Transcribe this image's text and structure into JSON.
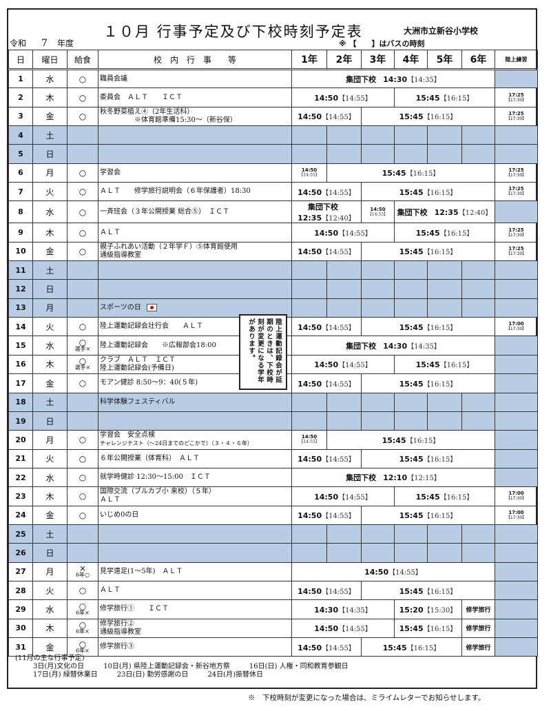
{
  "title": "１０月 行事予定及び下校時刻予定表",
  "school": "大洲市立新谷小学校",
  "era": {
    "label": "令和",
    "year": "7",
    "suffix": "年度"
  },
  "bus_note": "※ 【　　】はバスの時刻",
  "headers": {
    "day": "日",
    "dow": "曜日",
    "lunch": "給食",
    "events": "校　内　行　事　　等",
    "grades": [
      "1年",
      "2年",
      "3年",
      "4年",
      "5年",
      "6年"
    ],
    "track": "陸上練習"
  },
  "colors": {
    "holiday_fill": "#b8cce4",
    "border": "#333333"
  },
  "rows": [
    {
      "d": "1",
      "w": "水",
      "l": "○",
      "e": "職員会議",
      "seg": [
        {
          "n": 6,
          "label": "集団下校",
          "t": "14:30",
          "b": "【14:35】"
        }
      ],
      "tr": null
    },
    {
      "d": "2",
      "w": "木",
      "l": "○",
      "e": "委員会　ＡＬＴ　　ＩＣＴ",
      "seg": [
        {
          "n": 3,
          "t": "14:50",
          "b": "【14:55】"
        },
        {
          "n": 3,
          "t": "15:45",
          "b": "【16:15】"
        }
      ],
      "tr": {
        "t": "17:25",
        "b": "【17:30】"
      }
    },
    {
      "d": "3",
      "w": "金",
      "l": "○",
      "e": "秋冬野菜植え④（2年生活科）\n　　　　　※体育館準備15:30～（新谷保）",
      "seg": [
        {
          "n": 2,
          "t": "14:50",
          "b": "【14:55】"
        },
        {
          "n": 4,
          "t": "15:45",
          "b": "【16:15】"
        }
      ],
      "tr": {
        "t": "17:25",
        "b": "【17:30】"
      }
    },
    {
      "d": "4",
      "w": "土",
      "h": true
    },
    {
      "d": "5",
      "w": "日",
      "h": true
    },
    {
      "d": "6",
      "w": "月",
      "l": "○",
      "e": "学習会",
      "seg": [
        {
          "n": 1,
          "t": "14:50",
          "b": "【14:55】",
          "small": true
        },
        {
          "n": 5,
          "t": "15:45",
          "b": "【16:15】"
        }
      ],
      "tr": {
        "t": "17:25",
        "b": "【17:30】"
      }
    },
    {
      "d": "7",
      "w": "火",
      "l": "○",
      "e": "ＡＬＴ　　修学旅行説明会（６年保護者）18:30",
      "seg": [
        {
          "n": 2,
          "t": "14:50",
          "b": "【14:55】"
        },
        {
          "n": 4,
          "t": "15:45",
          "b": "【16:15】"
        }
      ],
      "tr": {
        "t": "17:25",
        "b": "【17:30】"
      }
    },
    {
      "d": "8",
      "w": "水",
      "l": "○",
      "e": "一斉班会（３年公開授業 総合⑤）　ＩＣＴ",
      "seg": [
        {
          "n": 2,
          "label": "集団下校",
          "t": "12:35",
          "b": "【12:40】",
          "stack": true
        },
        {
          "n": 1,
          "t": "14:50",
          "b": "【14:55】",
          "small": true
        },
        {
          "n": 3,
          "label": "集団下校",
          "t": "12:35",
          "b": "【12:40】"
        }
      ],
      "tr": null
    },
    {
      "d": "9",
      "w": "木",
      "l": "○",
      "e": "ＡＬＴ",
      "seg": [
        {
          "n": 3,
          "t": "14:50",
          "b": "【14:55】"
        },
        {
          "n": 3,
          "t": "15:45",
          "b": "【16:15】"
        }
      ],
      "tr": {
        "t": "17:25",
        "b": "【17:30】"
      }
    },
    {
      "d": "10",
      "w": "金",
      "l": "○",
      "e": "親子ふれあい活動（２年学Ｆ）⑤体育館使用\n通級指導教室",
      "seg": [
        {
          "n": 2,
          "t": "14:50",
          "b": "【14:55】"
        },
        {
          "n": 4,
          "t": "15:45",
          "b": "【16:15】"
        }
      ],
      "tr": {
        "t": "17:25",
        "b": "【17:30】"
      }
    },
    {
      "d": "11",
      "w": "土",
      "h": true
    },
    {
      "d": "12",
      "w": "日",
      "h": true
    },
    {
      "d": "13",
      "w": "月",
      "h": true,
      "e": "スポーツの日",
      "flag": true
    },
    {
      "d": "14",
      "w": "火",
      "l": "○",
      "e": "陸上運動記録会壮行会　　ＡＬＴ",
      "seg": [
        {
          "n": 2,
          "t": "14:50",
          "b": "【14:55】"
        },
        {
          "n": 4,
          "t": "15:45",
          "b": "【16:15】"
        }
      ],
      "tr": {
        "t": "17:00",
        "b": "【17:30】"
      }
    },
    {
      "d": "15",
      "w": "水",
      "l": "○",
      "l2": "選手×",
      "e": "陸上運動記録会　　※広報部会18:00",
      "seg": [
        {
          "n": 6,
          "label": "集団下校",
          "t": "14:30",
          "b": "【14:35】"
        }
      ],
      "tr": null
    },
    {
      "d": "16",
      "w": "木",
      "l": "○",
      "l2": "選手×",
      "e": "クラブ　ＡＬＴ　ＩＣＴ\n陸上運動記録会(予備日)",
      "seg": [
        {
          "n": 3,
          "t": "14:50",
          "b": "【14:55】"
        },
        {
          "n": 3,
          "t": "15:45",
          "b": "【16:15】"
        }
      ],
      "tr": null
    },
    {
      "d": "17",
      "w": "金",
      "l": "○",
      "e": "モアン健診 8:50～9：40(５年)",
      "seg": [
        {
          "n": 2,
          "t": "14:50",
          "b": "【14:55】"
        },
        {
          "n": 4,
          "t": "15:45",
          "b": "【16:15】"
        }
      ],
      "tr": null
    },
    {
      "d": "18",
      "w": "土",
      "h": true,
      "e": "科学体験フェスティバル"
    },
    {
      "d": "19",
      "w": "日",
      "h": true
    },
    {
      "d": "20",
      "w": "月",
      "l": "○",
      "e": "学習会　安全点検",
      "e2": "チャレンジテスト（～24日までのどこかで）（３・４・６年）",
      "seg": [
        {
          "n": 1,
          "t": "14:50",
          "b": "【14:55】",
          "small": true
        },
        {
          "n": 5,
          "t": "15:45",
          "b": "【16:15】"
        }
      ],
      "tr": null
    },
    {
      "d": "21",
      "w": "火",
      "l": "○",
      "e": "６年公開授業（体育科）　ＡＬＴ",
      "seg": [
        {
          "n": 2,
          "t": "14:50",
          "b": "【14:55】"
        },
        {
          "n": 4,
          "t": "15:45",
          "b": "【16:15】"
        }
      ],
      "tr": null
    },
    {
      "d": "22",
      "w": "水",
      "l": "○",
      "e": "就学時健診 12:30～15:00　ＩＣＴ",
      "seg": [
        {
          "n": 6,
          "label": "集団下校",
          "t": "12:10",
          "b": "【12:15】"
        }
      ],
      "tr": null
    },
    {
      "d": "23",
      "w": "木",
      "l": "○",
      "e": "国際交流（ブルカブ小 来校）（５年）\nＡＬＴ",
      "seg": [
        {
          "n": 3,
          "t": "14:50",
          "b": "【14:55】"
        },
        {
          "n": 3,
          "t": "15:45",
          "b": "【16:15】"
        }
      ],
      "tr": {
        "t": "17:00",
        "b": "【17:30】"
      }
    },
    {
      "d": "24",
      "w": "金",
      "l": "○",
      "e": "いじめ0の日",
      "seg": [
        {
          "n": 2,
          "t": "14:50",
          "b": "【14:55】"
        },
        {
          "n": 4,
          "t": "15:45",
          "b": "【16:15】"
        }
      ],
      "tr": {
        "t": "17:00",
        "b": "【17:30】"
      }
    },
    {
      "d": "25",
      "w": "土",
      "h": true
    },
    {
      "d": "26",
      "w": "日",
      "h": true
    },
    {
      "d": "27",
      "w": "月",
      "l": "×",
      "l2": "6年○",
      "e": "見学遠足(1～5年)　ＡＬＴ",
      "seg": [
        {
          "n": 6,
          "t": "14:50",
          "b": "【14:55】"
        }
      ],
      "tr": null
    },
    {
      "d": "28",
      "w": "火",
      "l": "○",
      "e": "ＡＬＴ",
      "seg": [
        {
          "n": 2,
          "t": "14:50",
          "b": "【14:55】"
        },
        {
          "n": 4,
          "t": "15:45",
          "b": "【16:15】"
        }
      ],
      "tr": null
    },
    {
      "d": "29",
      "w": "水",
      "l": "○",
      "l2": "6年×",
      "e": "修学旅行①　　ＩＣＴ",
      "seg": [
        {
          "n": 3,
          "t": "14:30",
          "b": "【14:35】"
        },
        {
          "n": 2,
          "t": "15:20",
          "b": "【15:30】"
        },
        {
          "n": 1,
          "trip": "修学旅行"
        }
      ],
      "tr": null
    },
    {
      "d": "30",
      "w": "木",
      "l": "○",
      "l2": "6年×",
      "e": "修学旅行②\n通級指導教室",
      "seg": [
        {
          "n": 3,
          "t": "14:50",
          "b": "【14:55】"
        },
        {
          "n": 2,
          "t": "15:45",
          "b": "【16:15】"
        },
        {
          "n": 1,
          "trip": "修学旅行"
        }
      ],
      "tr": null
    },
    {
      "d": "31",
      "w": "金",
      "l": "○",
      "l2": "6年×",
      "e": "修学旅行③",
      "seg": [
        {
          "n": 2,
          "t": "14:50",
          "b": "【14:55】"
        },
        {
          "n": 3,
          "t": "15:45",
          "b": "【16:15】"
        },
        {
          "n": 1,
          "trip": "修学旅行"
        }
      ],
      "tr": null
    }
  ],
  "track_note": "陸上運動記録会が延期のときは、下校時刻が変更になる学年があります。",
  "november": {
    "heading": "(11月の主な行事予定)",
    "items": [
      [
        "3日(月)文化の日",
        "10日(月) 県陸上運動記録会・新谷地方祭",
        "16日(日) 人権・同和教育参観日"
      ],
      [
        "17日(月) 緑替休業日",
        "23日(日) 勤労感謝の日",
        "24日(月)振替休日"
      ]
    ]
  },
  "footer": "※　下校時刻が変更になった場合は、ミライムレターでお知らせします。"
}
